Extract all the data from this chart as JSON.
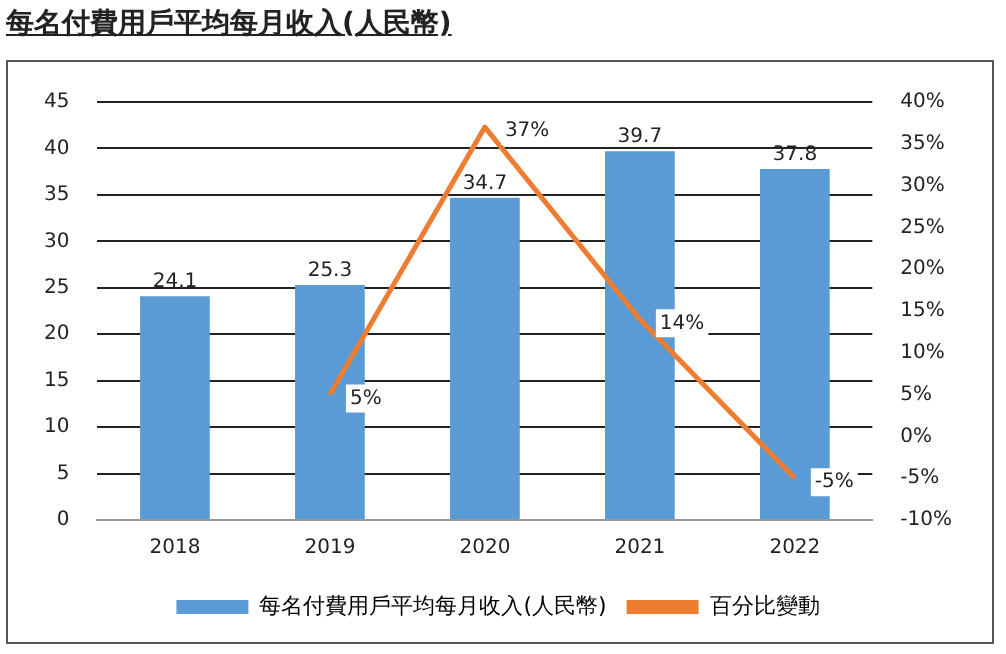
{
  "chart_data": {
    "type": "bar",
    "title": "每名付費用戶平均每月收入(人民幣)",
    "categories": [
      "2018",
      "2019",
      "2020",
      "2021",
      "2022"
    ],
    "series": [
      {
        "name": "每名付費用戶平均每月收入(人民幣)",
        "color": "#5b9bd5",
        "values": [
          24.1,
          25.3,
          34.7,
          39.7,
          37.8
        ]
      },
      {
        "name": "百分比變動",
        "type": "line",
        "axis": "y2",
        "color": "#ed7d31",
        "values": [
          null,
          5,
          37,
          14,
          -5
        ],
        "value_labels": [
          null,
          "5%",
          "37%",
          "14%",
          "-5%"
        ]
      }
    ],
    "ylim": [
      0,
      45
    ],
    "yticks": [
      0,
      5,
      10,
      15,
      20,
      25,
      30,
      35,
      40,
      45
    ],
    "y2lim": [
      -10,
      40
    ],
    "y2ticks": [
      {
        "value": -10,
        "label": "-10%"
      },
      {
        "value": -5,
        "label": "-5%"
      },
      {
        "value": 0,
        "label": "0%"
      },
      {
        "value": 5,
        "label": "5%"
      },
      {
        "value": 10,
        "label": "10%"
      },
      {
        "value": 15,
        "label": "15%"
      },
      {
        "value": 20,
        "label": "20%"
      },
      {
        "value": 25,
        "label": "25%"
      },
      {
        "value": 30,
        "label": "30%"
      },
      {
        "value": 35,
        "label": "35%"
      },
      {
        "value": 40,
        "label": "40%"
      }
    ],
    "grid": "y",
    "legend": "bottom",
    "marker": "none",
    "data_labels": true
  }
}
